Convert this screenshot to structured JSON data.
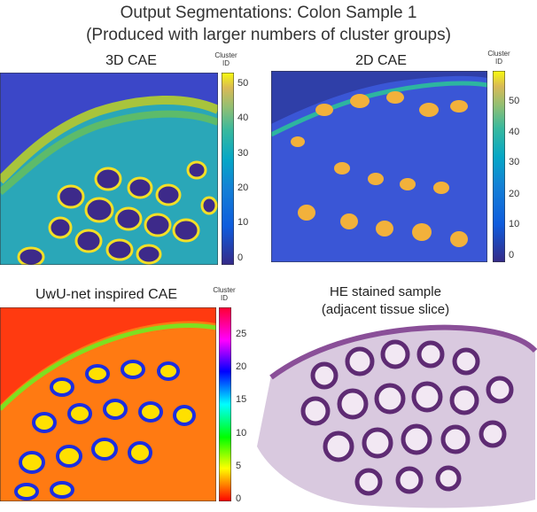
{
  "figure": {
    "title_line1": "Output Segmentations: Colon Sample 1",
    "title_line2": "(Produced with larger numbers of cluster groups)"
  },
  "panels": [
    {
      "title": "3D CAE",
      "colorbar_label_1": "Cluster",
      "colorbar_label_2": "ID",
      "colormap": "parula",
      "colorbar_ticks": [
        "50",
        "40",
        "30",
        "20",
        "10",
        "0"
      ],
      "colorbar_range": [
        0,
        55
      ]
    },
    {
      "title": "2D CAE",
      "colorbar_label_1": "Cluster",
      "colorbar_label_2": "ID",
      "colormap": "parula",
      "colorbar_ticks": [
        "50",
        "40",
        "30",
        "20",
        "10",
        "0"
      ],
      "colorbar_range": [
        0,
        58
      ]
    },
    {
      "title": "UwU-net inspired CAE",
      "colorbar_label_1": "Cluster",
      "colorbar_label_2": "ID",
      "colormap": "hsv",
      "colorbar_ticks": [
        "25",
        "20",
        "15",
        "10",
        "5",
        "0"
      ],
      "colorbar_range": [
        0,
        29
      ]
    },
    {
      "title_line1": "HE stained sample",
      "title_line2": "(adjacent tissue slice)"
    }
  ]
}
